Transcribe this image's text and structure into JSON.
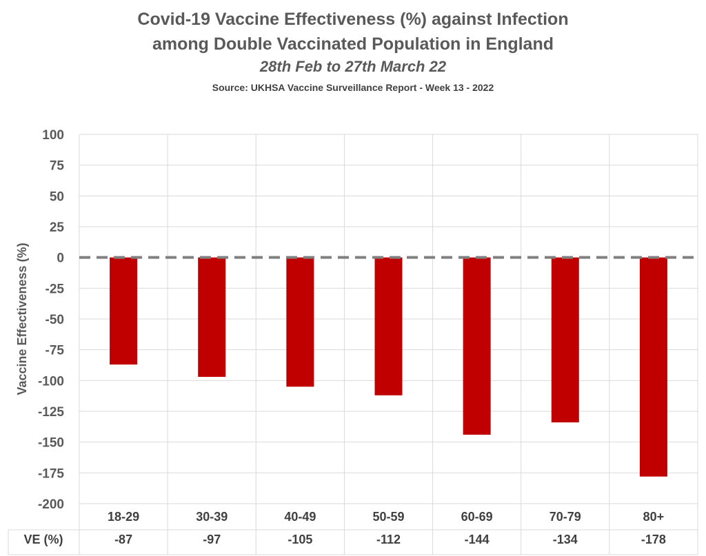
{
  "chart_data": {
    "type": "bar",
    "title_line1": "Covid-19 Vaccine Effectiveness (%) against Infection",
    "title_line2": "among Double Vaccinated Population in England",
    "subtitle": "28th Feb to 27th March 22",
    "source": "Source: UKHSA Vaccine Surveillance Report - Week 13 - 2022",
    "ylabel": "Vaccine Effectiveness (%)",
    "xlabel": "",
    "ylim": [
      -200,
      100
    ],
    "yticks": [
      100,
      75,
      50,
      25,
      0,
      -25,
      -50,
      -75,
      -100,
      -125,
      -150,
      -175,
      -200
    ],
    "categories": [
      "18-29",
      "30-39",
      "40-49",
      "50-59",
      "60-69",
      "70-79",
      "80+"
    ],
    "values": [
      -87,
      -97,
      -105,
      -112,
      -144,
      -134,
      -178
    ],
    "table_row_label": "VE (%)",
    "table_values": [
      "-87",
      "-97",
      "-105",
      "-112",
      "-144",
      "-134",
      "-178"
    ],
    "bar_color": "#c00000",
    "zero_line_color": "#808080",
    "zero_line_style": "dashed",
    "grid": true,
    "legend": "none"
  }
}
